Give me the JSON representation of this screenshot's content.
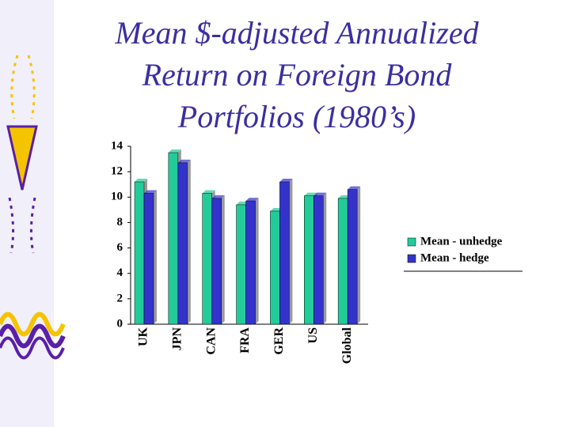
{
  "chart_data": {
    "type": "bar",
    "title": "Mean $-adjusted Annualized Return on Foreign Bond Portfolios (1980’s)",
    "categories": [
      "UK",
      "JPN",
      "CAN",
      "FRA",
      "GER",
      "US",
      "Global"
    ],
    "series": [
      {
        "name": "Mean - unhedge",
        "color": "#22cc99",
        "values": [
          11.2,
          13.5,
          10.3,
          9.4,
          8.9,
          10.1,
          9.9
        ]
      },
      {
        "name": "Mean - hedge",
        "color": "#3333cc",
        "values": [
          10.3,
          12.7,
          9.9,
          9.7,
          11.2,
          10.1,
          10.6
        ]
      }
    ],
    "ylim": [
      0,
      14
    ],
    "yticks": [
      0,
      2,
      4,
      6,
      8,
      10,
      12,
      14
    ],
    "grid": false
  }
}
